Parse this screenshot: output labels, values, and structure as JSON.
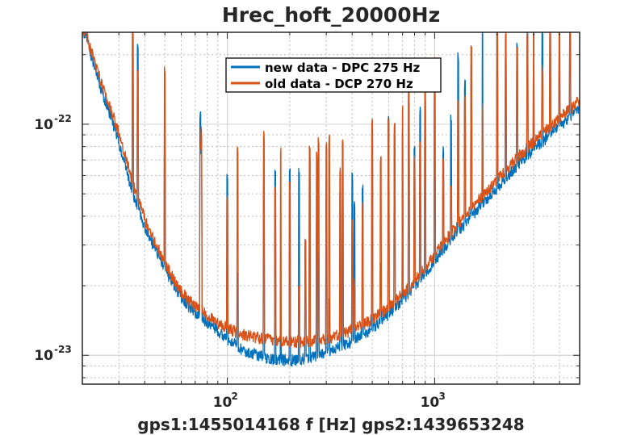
{
  "chart_data": {
    "type": "line",
    "title": "Hrec_hoft_20000Hz",
    "xlabel": "gps1:1455014168  f [Hz]  gps2:1439653248",
    "ylabel": "",
    "xscale": "log",
    "yscale": "log",
    "xlim": [
      20,
      5000
    ],
    "ylim": [
      7.5e-24,
      2.5e-22
    ],
    "x_ticks": [
      {
        "value": 100,
        "mantissa": "10",
        "exponent": "2"
      },
      {
        "value": 1000,
        "mantissa": "10",
        "exponent": "3"
      }
    ],
    "y_ticks": [
      {
        "value": 1e-23,
        "mantissa": "10",
        "exponent": "-23"
      },
      {
        "value": 1e-22,
        "mantissa": "10",
        "exponent": "-22"
      }
    ],
    "grid": true,
    "legend_position": "top-center",
    "series": [
      {
        "name": "new data - DPC 275 Hz",
        "color": "#0072BD",
        "x": [
          20,
          21,
          22,
          23,
          24,
          25,
          26,
          28,
          30,
          32,
          34,
          36,
          38,
          40,
          42,
          44,
          46,
          48,
          50,
          55,
          60,
          65,
          70,
          75,
          80,
          90,
          100,
          110,
          120,
          130,
          150,
          170,
          200,
          230,
          260,
          300,
          350,
          400,
          450,
          500,
          600,
          700,
          800,
          1000,
          1200,
          1500,
          2000,
          2500,
          3000,
          3500,
          4000,
          4500,
          5000
        ],
        "y": [
          2.5e-22,
          2.3e-22,
          1.95e-22,
          1.7e-22,
          1.5e-22,
          1.33e-22,
          1.2e-22,
          1e-22,
          8.2e-23,
          6.6e-23,
          5.4e-23,
          4.6e-23,
          4e-23,
          3.5e-23,
          3.2e-23,
          2.9e-23,
          2.7e-23,
          2.5e-23,
          2.3e-23,
          2e-23,
          1.75e-23,
          1.6e-23,
          1.5e-23,
          1.45e-23,
          1.35e-23,
          1.25e-23,
          1.15e-23,
          1.08e-23,
          1.03e-23,
          1e-23,
          9.6e-24,
          9.4e-24,
          9.3e-24,
          9.4e-24,
          9.6e-24,
          1e-23,
          1.06e-23,
          1.12e-23,
          1.2e-23,
          1.28e-23,
          1.48e-23,
          1.7e-23,
          1.95e-23,
          2.5e-23,
          3.1e-23,
          3.9e-23,
          5.2e-23,
          6.5e-23,
          7.6e-23,
          8.6e-23,
          9.6e-23,
          1.06e-22,
          1.15e-22
        ]
      },
      {
        "name": "old data - DCP 270 Hz",
        "color": "#D95319",
        "x": [
          20,
          21,
          22,
          23,
          24,
          25,
          26,
          28,
          30,
          32,
          34,
          36,
          38,
          40,
          42,
          44,
          46,
          48,
          50,
          55,
          60,
          65,
          70,
          75,
          80,
          90,
          100,
          110,
          120,
          130,
          150,
          170,
          200,
          230,
          260,
          300,
          350,
          400,
          450,
          500,
          600,
          700,
          800,
          1000,
          1200,
          1500,
          2000,
          2500,
          3000,
          3500,
          4000,
          4500,
          5000
        ],
        "y": [
          2.5e-22,
          2.4e-22,
          2.05e-22,
          1.8e-22,
          1.6e-22,
          1.42e-22,
          1.28e-22,
          1.08e-22,
          9e-23,
          7.3e-23,
          6e-23,
          5.1e-23,
          4.4e-23,
          3.8e-23,
          3.4e-23,
          3.1e-23,
          2.85e-23,
          2.65e-23,
          2.45e-23,
          2.1e-23,
          1.85e-23,
          1.7e-23,
          1.6e-23,
          1.52e-23,
          1.45e-23,
          1.35e-23,
          1.28e-23,
          1.23e-23,
          1.2e-23,
          1.18e-23,
          1.15e-23,
          1.13e-23,
          1.12e-23,
          1.12e-23,
          1.13e-23,
          1.15e-23,
          1.2e-23,
          1.26e-23,
          1.32e-23,
          1.4e-23,
          1.58e-23,
          1.8e-23,
          2.05e-23,
          2.65e-23,
          3.3e-23,
          4.2e-23,
          5.6e-23,
          7e-23,
          8.2e-23,
          9.3e-23,
          1.04e-22,
          1.14e-22,
          1.24e-22
        ]
      }
    ]
  }
}
